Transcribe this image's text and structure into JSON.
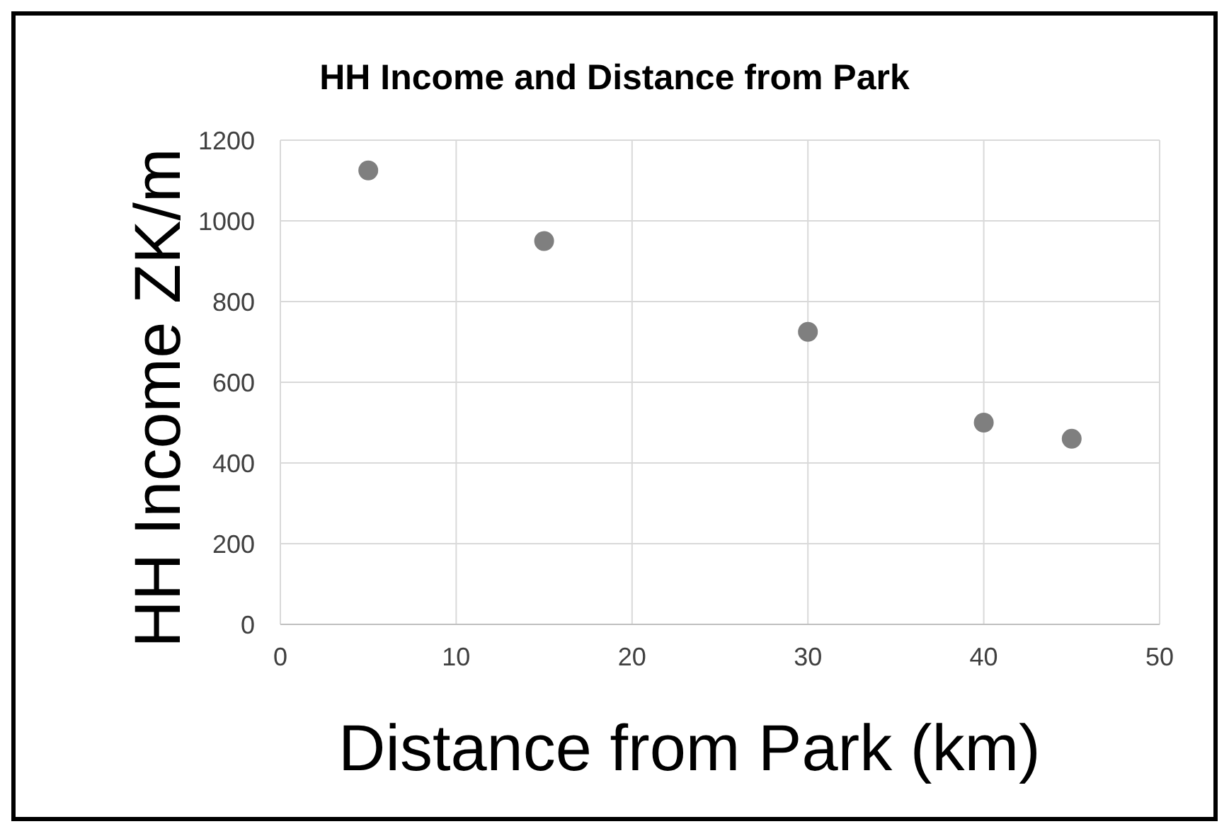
{
  "chart_data": {
    "type": "scatter",
    "title": "HH Income and Distance from Park",
    "xlabel": "Distance from Park (km)",
    "ylabel": "HH Income ZK/m",
    "x": [
      5,
      15,
      30,
      40,
      45
    ],
    "series": [
      {
        "color": "#7f7f7f",
        "values": [
          1125,
          950,
          725,
          500,
          460
        ]
      }
    ],
    "xlim": [
      0,
      50
    ],
    "xticks": [
      0,
      10,
      20,
      30,
      40,
      50
    ],
    "ylim": [
      0,
      1200
    ],
    "yticks": [
      0,
      200,
      400,
      600,
      800,
      1000,
      1200
    ],
    "grid": true,
    "marker": "circle"
  }
}
